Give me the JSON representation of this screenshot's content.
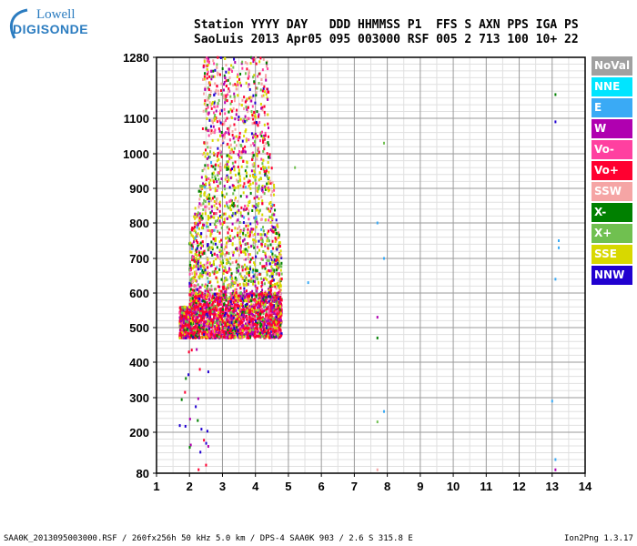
{
  "logo": {
    "line1": "Lowell",
    "line2": "DIGISONDE"
  },
  "header": {
    "row1": "Station YYYY DAY   DDD HHMMSS P1  FFS S AXN PPS IGA PS",
    "row2": "SaoLuis 2013 Apr05 095 003000 RSF 005 2 713 100 10+ 22"
  },
  "legend": [
    {
      "label": "NoVal",
      "color": "#a0a0a0"
    },
    {
      "label": "NNE",
      "color": "#00e5ff"
    },
    {
      "label": "E",
      "color": "#3aaaf5"
    },
    {
      "label": "W",
      "color": "#b000b0"
    },
    {
      "label": "Vo-",
      "color": "#ff40a0"
    },
    {
      "label": "Vo+",
      "color": "#ff0030"
    },
    {
      "label": "SSW",
      "color": "#f5a5a5"
    },
    {
      "label": "X-",
      "color": "#008000"
    },
    {
      "label": "X+",
      "color": "#70c050"
    },
    {
      "label": "SSE",
      "color": "#d8d800"
    },
    {
      "label": "NNW",
      "color": "#2000d0"
    }
  ],
  "footer": {
    "left": "SAA0K_2013095003000.RSF / 260fx256h 50 kHz 5.0 km / DPS-4 SAA0K 903 / 2.6 S 315.8 E",
    "right": "Ion2Png 1.3.17"
  },
  "chart_data": {
    "type": "scatter",
    "title": "",
    "xlabel": "",
    "ylabel": "",
    "xlim": [
      1,
      14
    ],
    "ylim": [
      80,
      1280
    ],
    "grid": true,
    "legend_placement": "right",
    "x_ticks": [
      "1",
      "2",
      "3",
      "4",
      "5",
      "6",
      "7",
      "8",
      "9",
      "10",
      "11",
      "12",
      "13",
      "14"
    ],
    "y_ticks": [
      "80",
      "200",
      "300",
      "400",
      "500",
      "600",
      "700",
      "800",
      "900",
      "1000",
      "1100",
      "1280"
    ],
    "clusters": [
      {
        "region": "dense",
        "x_range": [
          1.7,
          4.8
        ],
        "y_range": [
          470,
          1280
        ]
      }
    ],
    "isolated_points": [
      {
        "x": 7.7,
        "y": 800,
        "series": "E"
      },
      {
        "x": 7.7,
        "y": 530,
        "series": "W"
      },
      {
        "x": 7.7,
        "y": 470,
        "series": "X-"
      },
      {
        "x": 7.7,
        "y": 230,
        "series": "X+"
      },
      {
        "x": 7.7,
        "y": 90,
        "series": "SSW"
      },
      {
        "x": 7.9,
        "y": 1030,
        "series": "X+"
      },
      {
        "x": 7.9,
        "y": 700,
        "series": "E"
      },
      {
        "x": 7.9,
        "y": 260,
        "series": "E"
      },
      {
        "x": 13.1,
        "y": 1170,
        "series": "X-"
      },
      {
        "x": 13.1,
        "y": 1090,
        "series": "NNW"
      },
      {
        "x": 13.2,
        "y": 750,
        "series": "E"
      },
      {
        "x": 13.2,
        "y": 730,
        "series": "E"
      },
      {
        "x": 13.1,
        "y": 640,
        "series": "E"
      },
      {
        "x": 13.0,
        "y": 290,
        "series": "E"
      },
      {
        "x": 13.1,
        "y": 120,
        "series": "E"
      },
      {
        "x": 13.1,
        "y": 90,
        "series": "W"
      },
      {
        "x": 5.6,
        "y": 630,
        "series": "E"
      },
      {
        "x": 5.2,
        "y": 960,
        "series": "X+"
      }
    ]
  }
}
